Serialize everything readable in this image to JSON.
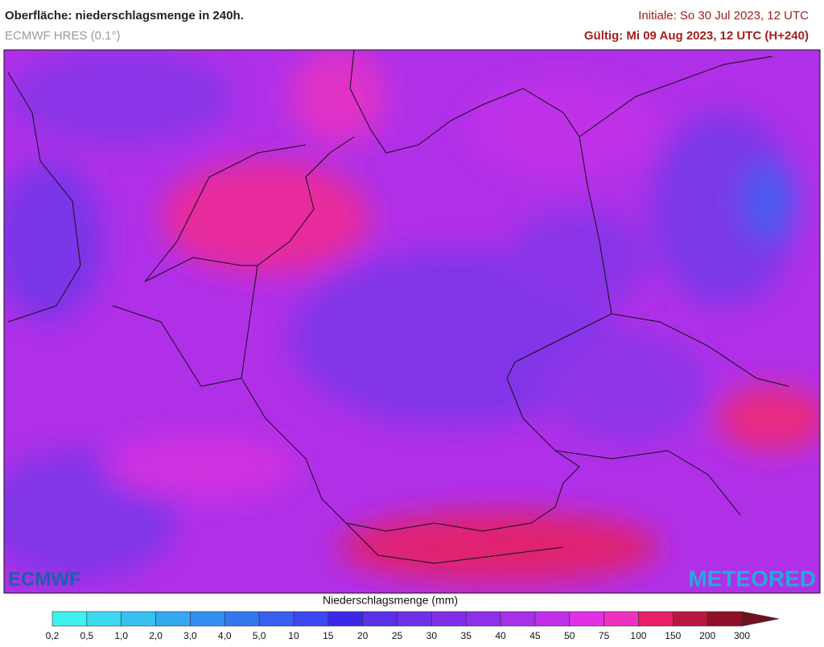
{
  "header": {
    "title": "Oberfläche: niederschlagsmenge in 240h.",
    "subtitle": "ECMWF HRES (0.1°)",
    "init": "Initiale: So 30 Jul 2023, 12 UTC",
    "valid": "Gültig: Mi 09 Aug 2023, 12 UTC (H+240)"
  },
  "logos": {
    "left": "ECMWF",
    "right": "METEORED"
  },
  "legend": {
    "title": "Niederschlagsmenge (mm)",
    "labels": [
      "0,2",
      "0,5",
      "1,0",
      "2,0",
      "3,0",
      "4,0",
      "5,0",
      "10",
      "15",
      "20",
      "25",
      "30",
      "35",
      "40",
      "45",
      "50",
      "75",
      "100",
      "150",
      "200",
      "300"
    ],
    "colors": [
      "#40f0f0",
      "#3cd8f0",
      "#38c0f0",
      "#34a8f0",
      "#3090f0",
      "#3478f0",
      "#3860f0",
      "#3c48f0",
      "#3c28e8",
      "#5a30e8",
      "#7030e8",
      "#8030e8",
      "#9030e8",
      "#a830e8",
      "#c030e8",
      "#e030e8",
      "#f030c0",
      "#e8206a",
      "#b81840",
      "#901028",
      "#701020"
    ]
  }
}
